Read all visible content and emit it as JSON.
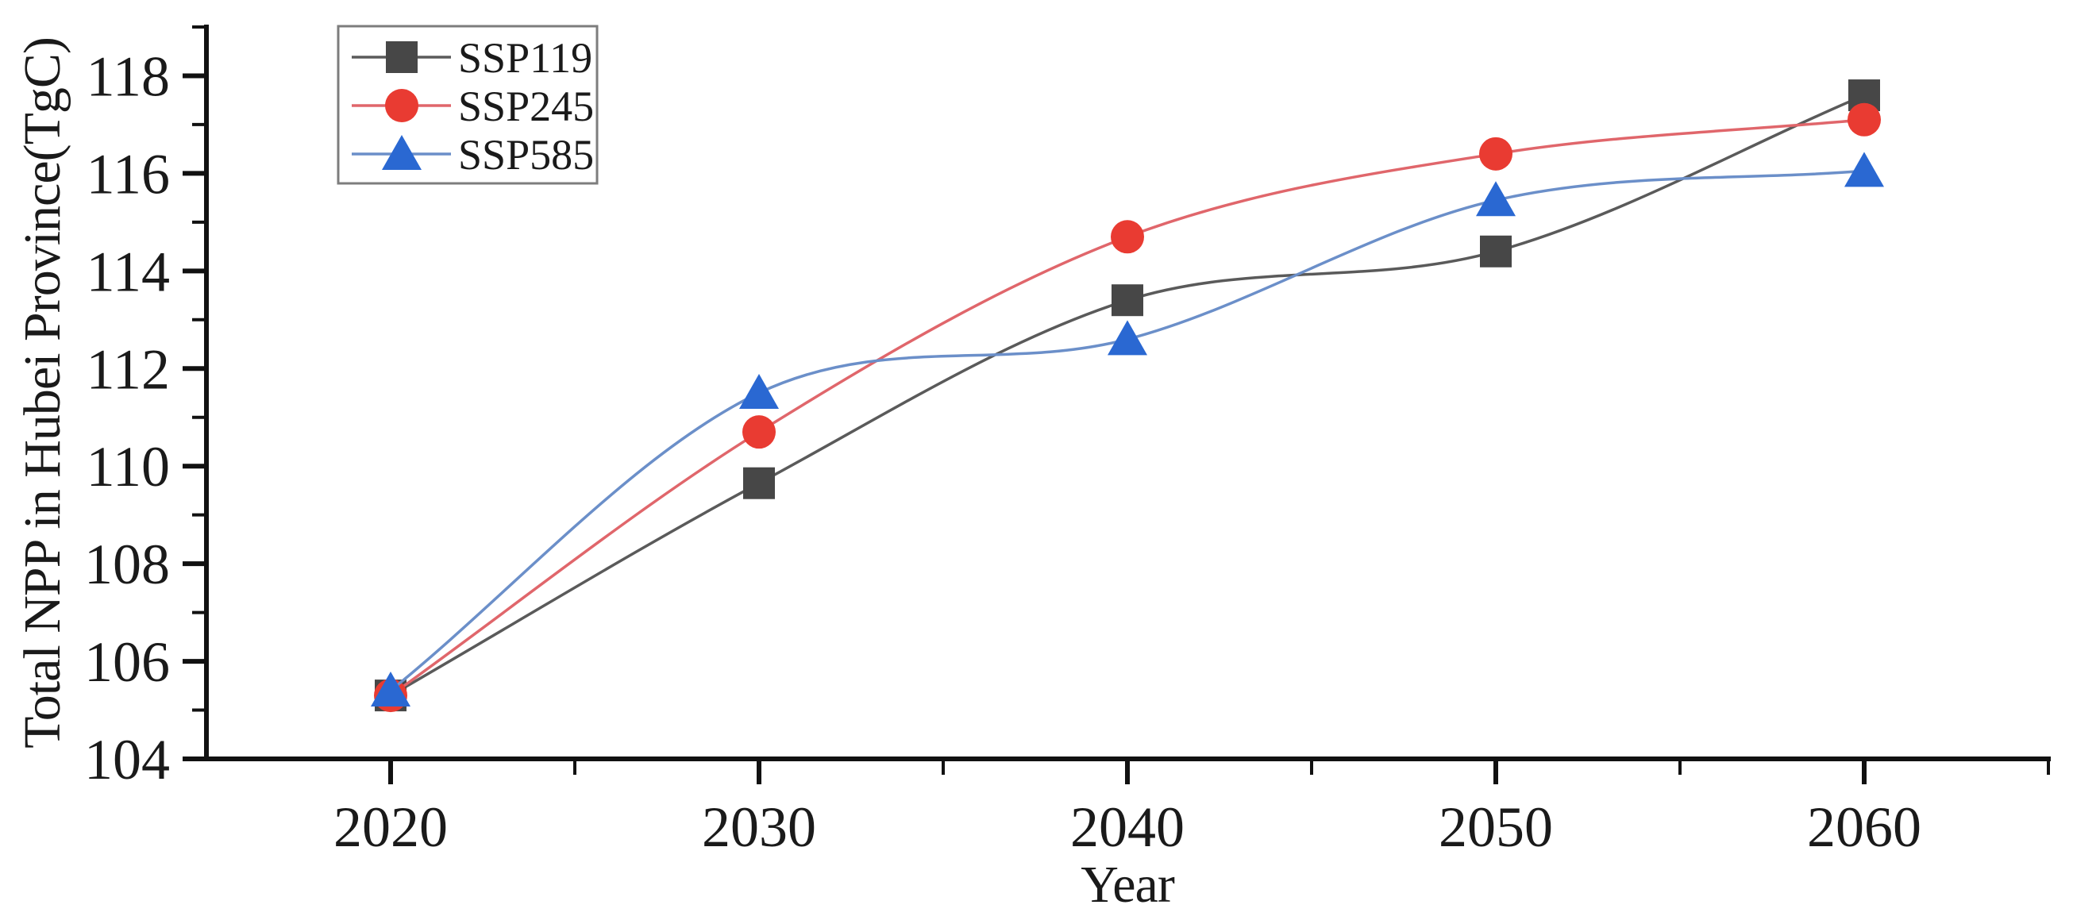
{
  "chart_data": {
    "type": "line",
    "title": "",
    "xlabel": "Year",
    "ylabel": "Total NPP in Hubei Province(TgC)",
    "x": [
      2020,
      2030,
      2040,
      2050,
      2060
    ],
    "x_tick_labels": [
      "2020",
      "2030",
      "2040",
      "2050",
      "2060"
    ],
    "x_minor_ticks": [
      2025,
      2035,
      2045,
      2055,
      2065
    ],
    "xlim": [
      2015,
      2065
    ],
    "y_major_ticks": [
      104,
      106,
      108,
      110,
      112,
      114,
      116,
      118
    ],
    "y_tick_labels": [
      "104",
      "106",
      "108",
      "110",
      "112",
      "114",
      "116",
      "118"
    ],
    "y_minor_ticks": [
      105,
      107,
      109,
      111,
      113,
      115,
      117,
      119
    ],
    "ylim": [
      104,
      119
    ],
    "grid": false,
    "line_style": "smooth-spline",
    "series": [
      {
        "name": "SSP119",
        "marker": "square",
        "marker_color": "#474747",
        "line_color": "#5a5a5a",
        "values": [
          105.3,
          109.65,
          113.4,
          114.4,
          117.6
        ]
      },
      {
        "name": "SSP245",
        "marker": "circle",
        "marker_color": "#e93b32",
        "line_color": "#e0666b",
        "values": [
          105.3,
          110.7,
          114.7,
          116.4,
          117.1
        ]
      },
      {
        "name": "SSP585",
        "marker": "triangle",
        "marker_color": "#2a68d2",
        "line_color": "#6b8fc9",
        "values": [
          105.4,
          111.5,
          112.6,
          115.45,
          116.05
        ]
      }
    ],
    "legend": {
      "position": "top-left",
      "entries": [
        "SSP119",
        "SSP245",
        "SSP585"
      ],
      "border_color": "#7d7d7d",
      "background": "#ffffff"
    },
    "axis_color": "#111111",
    "text_color": "#1a1a1a"
  }
}
